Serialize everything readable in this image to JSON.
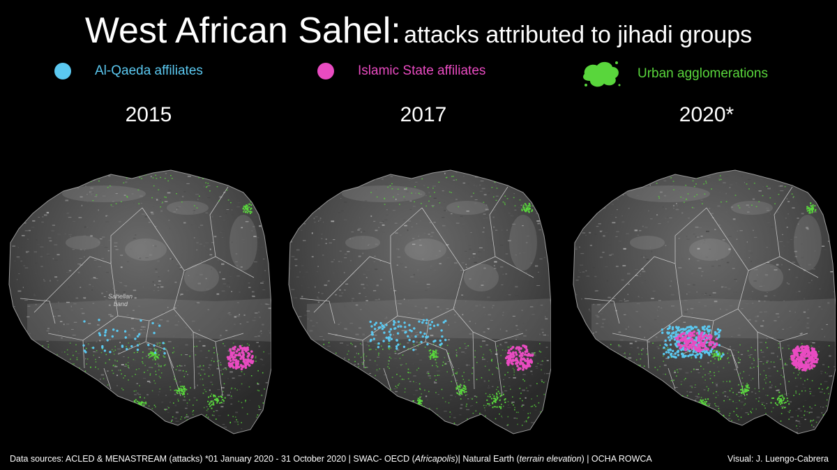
{
  "title": {
    "main": "West African Sahel:",
    "sub": "attacks attributed to jihadi groups"
  },
  "legend": [
    {
      "label": "Al-Qaeda affiliates",
      "color": "#5bc8f0",
      "icon": "circle"
    },
    {
      "label": "Islamic State affiliates",
      "color": "#e94bc1",
      "icon": "circle"
    },
    {
      "label": "Urban agglomerations",
      "color": "#59d63c",
      "icon": "blob"
    }
  ],
  "panels": [
    {
      "year": "2015",
      "band_label_1": "Sahelian",
      "band_label_2": "band",
      "aq_level": "low",
      "is_level": "moderate"
    },
    {
      "year": "2017",
      "band_label_1": "",
      "band_label_2": "",
      "aq_level": "medium",
      "is_level": "moderate"
    },
    {
      "year": "2020*",
      "band_label_1": "",
      "band_label_2": "",
      "aq_level": "high",
      "is_level": "high"
    }
  ],
  "footer": {
    "sources_prefix": "Data sources: ACLED & MENASTREAM (attacks) *01 January 2020 - 31 October 2020  | SWAC- OECD (",
    "africapolis": "Africapolis",
    "mid": ")| Natural Earth (",
    "terrain": "terrain elevation",
    "suffix": ")   | OCHA ROWCA",
    "credit": "Visual: J. Luengo-Cabrera"
  },
  "colors": {
    "aq": "#5bc8f0",
    "is": "#e94bc1",
    "urban": "#59d63c"
  }
}
